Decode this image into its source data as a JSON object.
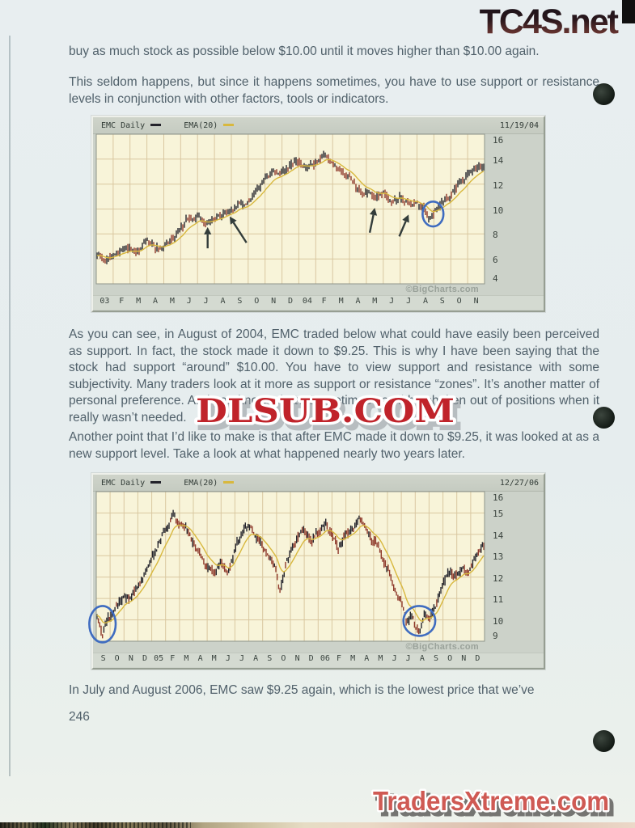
{
  "page": {
    "top_logo": "TC4S.net",
    "bottom_logo": "TradersXtreme.com",
    "center_watermark": "DLSUB.COM",
    "page_number": "246"
  },
  "body_text": {
    "p1": "buy as much stock as possible below $10.00 until it moves higher than $10.00 again.",
    "p2": "This seldom happens, but since it happens sometimes, you have to use support or resistance levels in conjunction with other factors, tools or indicators.",
    "p3": "As you can see, in August of 2004, EMC traded below what could have easily been perceived as support.  In fact, the stock made it down to $9.25.  This is why I have been saying that the stock had support “around” $10.00.  You have to view support and resistance with some subjectivity.  Many traders look at it more as support or resistance “zones”.  It’s another matter of personal preference.  And you know what?  Sometimes you’ll be shaken out of positions when it really wasn’t needed.",
    "p4": "Another point that I’d like to make is that after EMC made it down to $9.25, it was looked at as a new support level.  Take a look at what happened nearly two years later.",
    "p5": "In July and August 2006, EMC saw $9.25 again, which is the lowest price that we’ve"
  },
  "colors": {
    "page_bg": "#e7edee",
    "body_text": "#51616b",
    "watermark_red": "#c0232a",
    "footer_logo_red": "#cf5a54",
    "candle_dark": "#26262e",
    "candle_red": "#8f3a2c",
    "ema_yellow": "#d8b83e",
    "plot_bg": "#f8f4d9",
    "grid_tan": "#d9c7a0",
    "annotation_blue": "#3f6cc0",
    "annotation_arrow": "#333d3b"
  },
  "chart_data": [
    {
      "type": "candlestick",
      "symbol_label": "EMC Daily",
      "overlay_label": "EMA(20)",
      "date_label": "11/19/04",
      "source_label": "©BigCharts.com",
      "ylim": [
        4,
        16
      ],
      "y_ticks": [
        16,
        14,
        12,
        10,
        8,
        6,
        4
      ],
      "x_labels": [
        "03",
        "F",
        "M",
        "A",
        "M",
        "J",
        "J",
        "A",
        "S",
        "O",
        "N",
        "D",
        "04",
        "F",
        "M",
        "A",
        "M",
        "J",
        "J",
        "A",
        "S",
        "O",
        "N"
      ],
      "months_total": 23,
      "n_bars": 240,
      "seed": 11,
      "bar_scale": 1.0,
      "anchors": [
        [
          0,
          6.3
        ],
        [
          0.5,
          5.9
        ],
        [
          1,
          6.15
        ],
        [
          1.6,
          6.7
        ],
        [
          2,
          6.9
        ],
        [
          2.4,
          6.55
        ],
        [
          3,
          7.3
        ],
        [
          3.5,
          6.9
        ],
        [
          4,
          7.0
        ],
        [
          4.5,
          7.7
        ],
        [
          5,
          8.5
        ],
        [
          5.5,
          9.2
        ],
        [
          6,
          9.6
        ],
        [
          6.5,
          8.9
        ],
        [
          7,
          9.1
        ],
        [
          7.5,
          9.6
        ],
        [
          8,
          10.2
        ],
        [
          8.5,
          10.5
        ],
        [
          9,
          10.6
        ],
        [
          9.5,
          11.6
        ],
        [
          10,
          12.5
        ],
        [
          10.5,
          13.3
        ],
        [
          11,
          13.1
        ],
        [
          11.5,
          13.9
        ],
        [
          12,
          14.0
        ],
        [
          12.4,
          13.4
        ],
        [
          13,
          14.0
        ],
        [
          13.6,
          14.5
        ],
        [
          14,
          13.9
        ],
        [
          14.5,
          13.1
        ],
        [
          15,
          12.7
        ],
        [
          15.4,
          11.9
        ],
        [
          16,
          11.4
        ],
        [
          16.5,
          10.9
        ],
        [
          17,
          11.2
        ],
        [
          17.6,
          10.5
        ],
        [
          18,
          10.8
        ],
        [
          18.5,
          10.25
        ],
        [
          19,
          10.55
        ],
        [
          19.4,
          10.05
        ],
        [
          19.8,
          9.3
        ],
        [
          20.15,
          10.15
        ],
        [
          20.6,
          10.5
        ],
        [
          21,
          11.0
        ],
        [
          21.5,
          11.8
        ],
        [
          22,
          12.6
        ],
        [
          22.5,
          13.1
        ],
        [
          23,
          13.6
        ]
      ],
      "annotations": {
        "arrows": [
          [
            6.6,
            8.55,
            6.6,
            6.85
          ],
          [
            7.9,
            9.4,
            8.9,
            7.3
          ],
          [
            16.5,
            10.1,
            16.2,
            8.1
          ],
          [
            18.5,
            9.55,
            17.95,
            7.8
          ]
        ],
        "ellipses": [
          [
            19.95,
            9.6,
            0.62,
            1.0
          ]
        ]
      }
    },
    {
      "type": "candlestick",
      "symbol_label": "EMC Daily",
      "overlay_label": "EMA(20)",
      "date_label": "12/27/06",
      "source_label": "©BigCharts.com",
      "ylim": [
        9,
        16
      ],
      "y_ticks": [
        16,
        15,
        14,
        13,
        12,
        11,
        10,
        9
      ],
      "x_labels": [
        "S",
        "O",
        "N",
        "D",
        "05",
        "F",
        "M",
        "A",
        "M",
        "J",
        "J",
        "A",
        "S",
        "O",
        "N",
        "D",
        "06",
        "F",
        "M",
        "A",
        "M",
        "J",
        "J",
        "A",
        "S",
        "O",
        "N",
        "D"
      ],
      "months_total": 28,
      "n_bars": 280,
      "seed": 23,
      "bar_scale": 0.62,
      "anchors": [
        [
          0,
          10.4
        ],
        [
          0.2,
          10.0
        ],
        [
          0.45,
          9.3
        ],
        [
          0.8,
          10.1
        ],
        [
          1,
          9.9
        ],
        [
          1.5,
          10.6
        ],
        [
          2,
          11.2
        ],
        [
          2.5,
          10.9
        ],
        [
          3,
          11.7
        ],
        [
          3.5,
          12.3
        ],
        [
          4,
          12.8
        ],
        [
          4.5,
          13.5
        ],
        [
          5,
          14.1
        ],
        [
          5.6,
          14.85
        ],
        [
          6,
          14.4
        ],
        [
          6.5,
          14.2
        ],
        [
          7,
          13.6
        ],
        [
          7.5,
          13.1
        ],
        [
          8,
          12.5
        ],
        [
          8.5,
          12.3
        ],
        [
          9,
          12.7
        ],
        [
          9.5,
          12.2
        ],
        [
          10,
          13.1
        ],
        [
          10.5,
          14.0
        ],
        [
          11,
          14.3
        ],
        [
          11.5,
          13.9
        ],
        [
          12,
          13.3
        ],
        [
          12.5,
          12.8
        ],
        [
          13,
          12.4
        ],
        [
          13.25,
          11.4
        ],
        [
          13.6,
          12.6
        ],
        [
          14,
          13.2
        ],
        [
          14.6,
          14.0
        ],
        [
          15,
          14.3
        ],
        [
          15.5,
          13.8
        ],
        [
          16,
          14.1
        ],
        [
          16.5,
          14.5
        ],
        [
          17,
          14.0
        ],
        [
          17.5,
          13.5
        ],
        [
          18,
          13.9
        ],
        [
          18.6,
          14.4
        ],
        [
          19,
          14.8
        ],
        [
          19.5,
          14.2
        ],
        [
          20,
          13.6
        ],
        [
          20.5,
          13.1
        ],
        [
          21,
          12.2
        ],
        [
          21.5,
          11.5
        ],
        [
          22,
          10.9
        ],
        [
          22.4,
          9.8
        ],
        [
          22.7,
          10.4
        ],
        [
          23,
          9.9
        ],
        [
          23.3,
          9.4
        ],
        [
          23.7,
          10.4
        ],
        [
          24,
          10.2
        ],
        [
          24.5,
          10.7
        ],
        [
          25,
          11.6
        ],
        [
          25.5,
          12.2
        ],
        [
          26,
          12.1
        ],
        [
          26.4,
          12.6
        ],
        [
          26.8,
          12.2
        ],
        [
          27,
          12.6
        ],
        [
          27.5,
          13.2
        ],
        [
          28,
          13.6
        ]
      ],
      "annotations": {
        "arrows": [],
        "ellipses": [
          [
            0.45,
            9.8,
            0.95,
            0.85
          ],
          [
            23.3,
            9.95,
            1.15,
            0.7
          ]
        ]
      }
    }
  ]
}
